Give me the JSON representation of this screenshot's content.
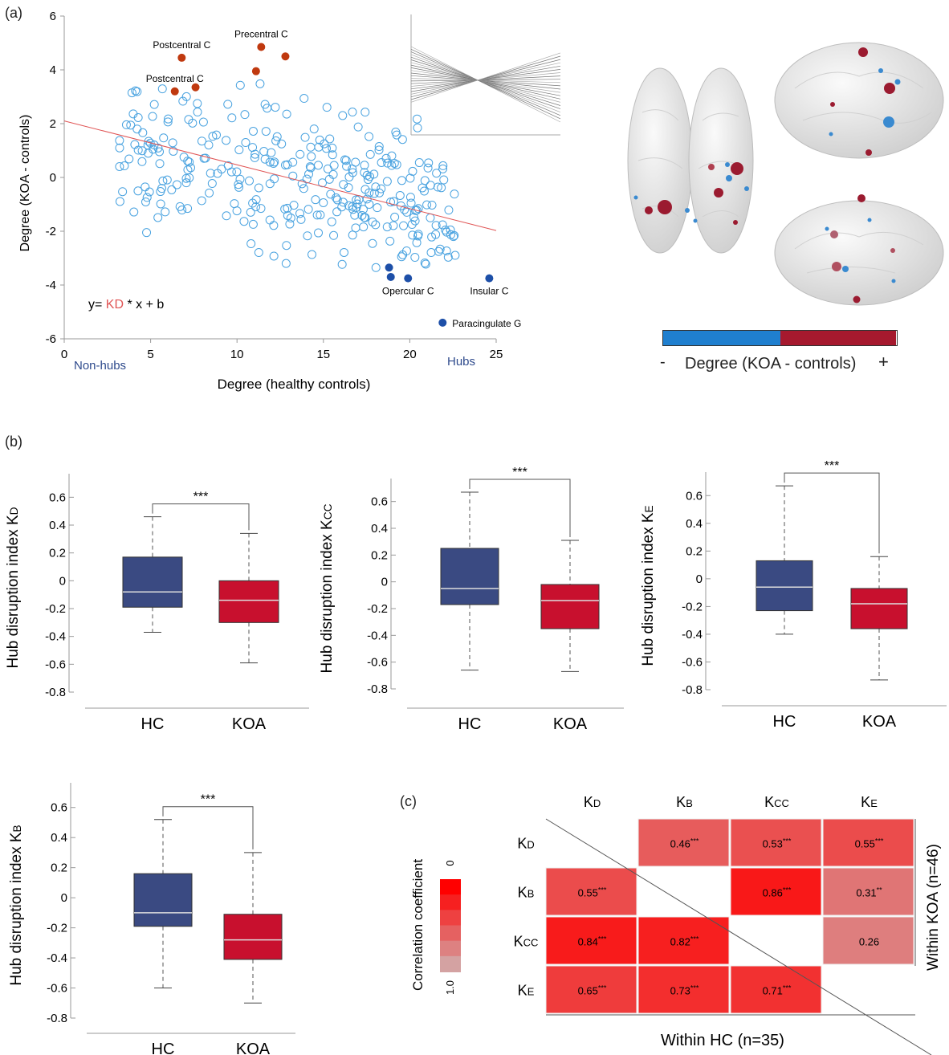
{
  "panel_labels": {
    "a": "(a)",
    "b": "(b)",
    "c": "(c)"
  },
  "colors": {
    "scatter": "#4aa3e0",
    "fit_line": "#e05555",
    "positive": "#b5172f",
    "negative": "#1d4fa8",
    "hc_box": "#3a4a82",
    "koa_box": "#c8102e",
    "hub_text": "#2e4a8c"
  },
  "chart_data": [
    {
      "id": "scatter",
      "type": "scatter",
      "xlabel": "Degree (healthy controls)",
      "ylabel": "Degree (KOA - controls)",
      "xlim": [
        0,
        25
      ],
      "ylim": [
        -6,
        6
      ],
      "xticks": [
        "0",
        "5",
        "10",
        "15",
        "20",
        "25"
      ],
      "yticks": [
        "6",
        "4",
        "2",
        "0",
        "-2",
        "-4",
        "-6"
      ],
      "equation_prefix": "y= ",
      "equation_kd": "KD",
      "equation_suffix": " * x + b",
      "hub_labels": {
        "left": "Non-hubs",
        "right": "Hubs"
      },
      "fit": {
        "slope": -0.163,
        "intercept": 2.1
      },
      "highlight_positive": [
        {
          "x": 6.8,
          "y": 4.45,
          "label": "Postcentral C"
        },
        {
          "x": 11.4,
          "y": 4.85,
          "label": "Precentral C"
        },
        {
          "x": 12.8,
          "y": 4.5,
          "label": ""
        },
        {
          "x": 11.1,
          "y": 3.95,
          "label": ""
        },
        {
          "x": 7.6,
          "y": 3.35,
          "label": ""
        },
        {
          "x": 6.4,
          "y": 3.2,
          "label": "Postcentral C"
        }
      ],
      "highlight_negative": [
        {
          "x": 18.8,
          "y": -3.35,
          "label": ""
        },
        {
          "x": 18.9,
          "y": -3.7,
          "label": ""
        },
        {
          "x": 19.9,
          "y": -3.75,
          "label": "Opercular C"
        },
        {
          "x": 24.6,
          "y": -3.75,
          "label": "Insular C"
        },
        {
          "x": 21.9,
          "y": -5.4,
          "label": "Paracingulate G"
        }
      ]
    },
    {
      "id": "box_kd",
      "type": "box",
      "ylabel": "Hub disruption index KD",
      "ylim": [
        -0.8,
        0.7
      ],
      "yticks": [
        "0.6",
        "0.4",
        "0.2",
        "0",
        "-0.2",
        "-0.4",
        "-0.6",
        "-0.8"
      ],
      "categories": [
        "HC",
        "KOA"
      ],
      "significance": "***",
      "boxes": [
        {
          "min": -0.37,
          "q1": -0.19,
          "median": -0.08,
          "q3": 0.17,
          "max": 0.46
        },
        {
          "min": -0.59,
          "q1": -0.3,
          "median": -0.14,
          "q3": 0.0,
          "max": 0.34
        }
      ]
    },
    {
      "id": "box_kcc",
      "type": "box",
      "ylabel": "Hub disruption index KCC",
      "ylim": [
        -0.8,
        0.7
      ],
      "yticks": [
        "0.6",
        "0.4",
        "0.2",
        "0",
        "-0.2",
        "-0.4",
        "-0.6",
        "-0.8"
      ],
      "categories": [
        "HC",
        "KOA"
      ],
      "significance": "***",
      "boxes": [
        {
          "min": -0.66,
          "q1": -0.17,
          "median": -0.05,
          "q3": 0.25,
          "max": 0.67
        },
        {
          "min": -0.67,
          "q1": -0.35,
          "median": -0.14,
          "q3": -0.02,
          "max": 0.31
        }
      ]
    },
    {
      "id": "box_ke",
      "type": "box",
      "ylabel": "Hub disruption index KE",
      "ylim": [
        -0.8,
        0.7
      ],
      "yticks": [
        "0.6",
        "0.4",
        "0.2",
        "0",
        "-0.2",
        "-0.4",
        "-0.6",
        "-0.8"
      ],
      "categories": [
        "HC",
        "KOA"
      ],
      "significance": "***",
      "boxes": [
        {
          "min": -0.4,
          "q1": -0.23,
          "median": -0.06,
          "q3": 0.13,
          "max": 0.67
        },
        {
          "min": -0.73,
          "q1": -0.36,
          "median": -0.18,
          "q3": -0.07,
          "max": 0.16
        }
      ]
    },
    {
      "id": "box_kb",
      "type": "box",
      "ylabel": "Hub disruption index KB",
      "ylim": [
        -0.8,
        0.7
      ],
      "yticks": [
        "0.6",
        "0.4",
        "0.2",
        "0",
        "-0.2",
        "-0.4",
        "-0.6",
        "-0.8"
      ],
      "categories": [
        "HC",
        "KOA"
      ],
      "significance": "***",
      "boxes": [
        {
          "min": -0.6,
          "q1": -0.19,
          "median": -0.1,
          "q3": 0.16,
          "max": 0.52
        },
        {
          "min": -0.7,
          "q1": -0.41,
          "median": -0.28,
          "q3": -0.11,
          "max": 0.3
        }
      ]
    },
    {
      "id": "heatmap",
      "type": "heatmap",
      "col_labels": [
        "KD",
        "KB",
        "KCC",
        "KE"
      ],
      "row_labels": [
        "KD",
        "KB",
        "KCC",
        "KE"
      ],
      "upper_title": "Within KOA (n=46)",
      "lower_title": "Within HC (n=35)",
      "colorbar_label": "Correlation coefficient",
      "colorbar_ticks": [
        "0",
        "1.0"
      ],
      "cells": [
        {
          "row": 0,
          "col": 1,
          "value": 0.46,
          "label": "0.46",
          "stars": "***"
        },
        {
          "row": 0,
          "col": 2,
          "value": 0.53,
          "label": "0.53",
          "stars": "***"
        },
        {
          "row": 0,
          "col": 3,
          "value": 0.55,
          "label": "0.55",
          "stars": "***"
        },
        {
          "row": 1,
          "col": 2,
          "value": 0.86,
          "label": "0.86",
          "stars": "***"
        },
        {
          "row": 1,
          "col": 3,
          "value": 0.31,
          "label": "0.31",
          "stars": "**"
        },
        {
          "row": 2,
          "col": 3,
          "value": 0.26,
          "label": "0.26",
          "stars": ""
        },
        {
          "row": 1,
          "col": 0,
          "value": 0.55,
          "label": "0.55",
          "stars": "***"
        },
        {
          "row": 2,
          "col": 0,
          "value": 0.84,
          "label": "0.84",
          "stars": "***"
        },
        {
          "row": 2,
          "col": 1,
          "value": 0.82,
          "label": "0.82",
          "stars": "***"
        },
        {
          "row": 3,
          "col": 0,
          "value": 0.65,
          "label": "0.65",
          "stars": "***"
        },
        {
          "row": 3,
          "col": 1,
          "value": 0.73,
          "label": "0.73",
          "stars": "***"
        },
        {
          "row": 3,
          "col": 2,
          "value": 0.71,
          "label": "0.71",
          "stars": "***"
        }
      ]
    }
  ],
  "brain_legend": {
    "label": "Degree (KOA - controls)",
    "minus": "-",
    "plus": "+"
  }
}
